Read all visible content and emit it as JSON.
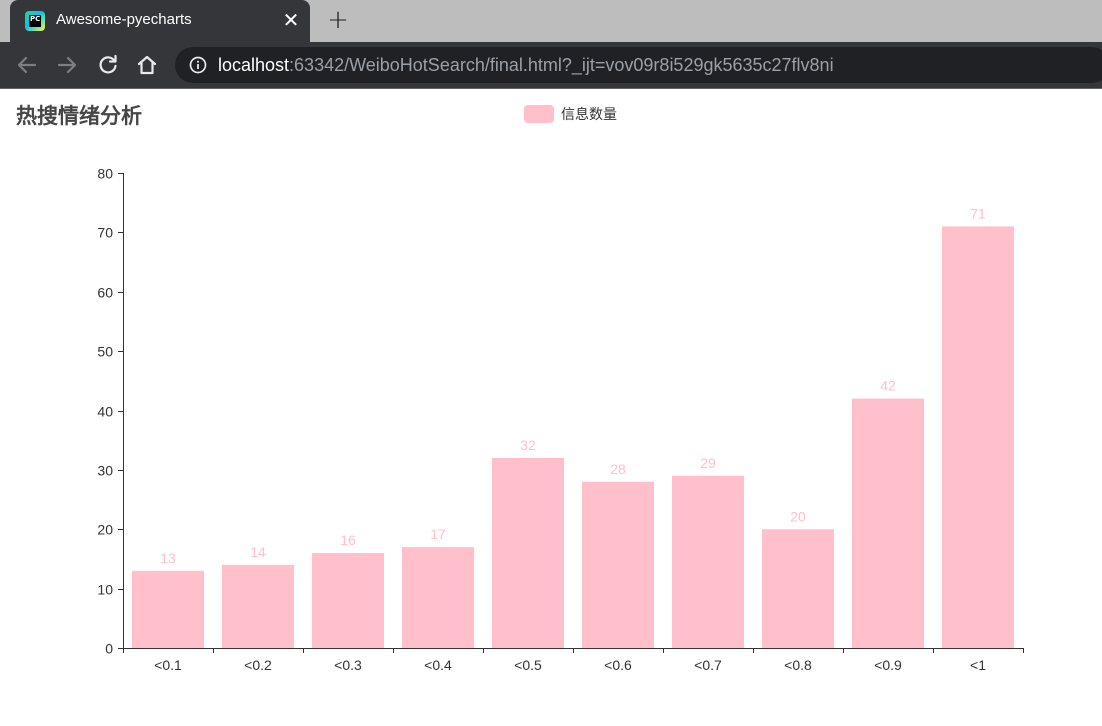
{
  "browser": {
    "tab_title": "Awesome-pyecharts",
    "tab_favicon": "pycharm-icon",
    "close_symbol": "✕",
    "new_tab_symbol": "+",
    "url_host": "localhost",
    "url_rest": ":63342/WeiboHotSearch/final.html?_ijt=vov09r8i529gk5635c27flv8ni"
  },
  "chart_data": {
    "type": "bar",
    "title": "热搜情绪分析",
    "categories": [
      "<0.1",
      "<0.2",
      "<0.3",
      "<0.4",
      "<0.5",
      "<0.6",
      "<0.7",
      "<0.8",
      "<0.9",
      "<1"
    ],
    "series": [
      {
        "name": "信息数量",
        "color": "#ffc0cb",
        "values": [
          13,
          14,
          16,
          17,
          32,
          28,
          29,
          20,
          42,
          71
        ]
      }
    ],
    "ylim": [
      0,
      80
    ],
    "yticks": [
      0,
      10,
      20,
      30,
      40,
      50,
      60,
      70,
      80
    ],
    "data_labels": true,
    "legend_position": "top-center",
    "grid": false
  }
}
